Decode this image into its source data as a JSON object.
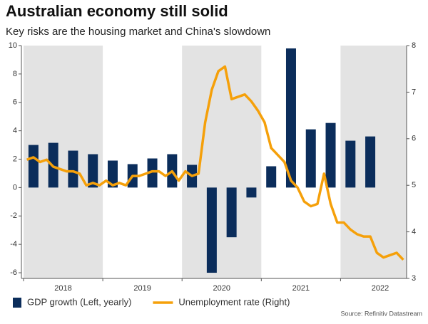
{
  "chart_data": {
    "type": "bar-line",
    "title": "Australian economy still solid",
    "subtitle": "Key risks are the housing market and China's slowdown",
    "source": "Source: Refinitiv Datastream",
    "categories": [
      null,
      null,
      null,
      null,
      null,
      null,
      "2018",
      null,
      null,
      null,
      null,
      null,
      null,
      null,
      null,
      null,
      null,
      null,
      "2019",
      null,
      null,
      null,
      null,
      null,
      null,
      null,
      null,
      null,
      null,
      null,
      "2020",
      null,
      null,
      null,
      null,
      null,
      null,
      null,
      null,
      null,
      null,
      null,
      "2021",
      null,
      null,
      null,
      null,
      null,
      null,
      null,
      null,
      null,
      null,
      null,
      "2022",
      null,
      null,
      null
    ],
    "series": [
      {
        "name": "GDP growth (Left, yearly)",
        "type": "bar",
        "color": "#0b2d5b",
        "values": [
          null,
          3.0,
          null,
          null,
          3.15,
          null,
          null,
          2.6,
          null,
          null,
          2.35,
          null,
          null,
          1.9,
          null,
          null,
          1.65,
          null,
          null,
          2.05,
          null,
          null,
          2.35,
          null,
          null,
          1.6,
          null,
          null,
          -6.0,
          null,
          null,
          -3.5,
          null,
          null,
          -0.7,
          null,
          null,
          1.5,
          null,
          null,
          9.8,
          null,
          null,
          4.1,
          null,
          null,
          4.55,
          null,
          null,
          3.3,
          null,
          null,
          3.6,
          null,
          null,
          null,
          null,
          null
        ]
      },
      {
        "name": "Unemployment rate (Right)",
        "type": "line",
        "axis": "y2",
        "color": "#f5a00a",
        "values": [
          5.55,
          5.6,
          5.5,
          5.55,
          5.4,
          5.35,
          5.3,
          5.3,
          5.25,
          5.0,
          5.05,
          5.0,
          5.1,
          5.0,
          5.05,
          5.0,
          5.2,
          5.2,
          5.25,
          5.3,
          5.3,
          5.2,
          5.3,
          5.1,
          5.3,
          5.2,
          5.25,
          6.35,
          7.05,
          7.45,
          7.55,
          6.85,
          6.9,
          6.95,
          6.8,
          6.6,
          6.35,
          5.8,
          5.65,
          5.5,
          5.1,
          4.95,
          4.65,
          4.55,
          4.6,
          5.25,
          4.6,
          4.2,
          4.2,
          4.05,
          3.95,
          3.9,
          3.9,
          3.55,
          3.45,
          3.5,
          3.55,
          3.4
        ]
      }
    ],
    "ylim": [
      -6.4,
      10
    ],
    "yticks": [
      -6,
      -4,
      -2,
      0,
      2,
      4,
      6,
      8,
      10
    ],
    "y2lim": [
      3,
      8
    ],
    "y2ticks": [
      3,
      4,
      5,
      6,
      7,
      8
    ],
    "shade_alternate_years": true
  }
}
